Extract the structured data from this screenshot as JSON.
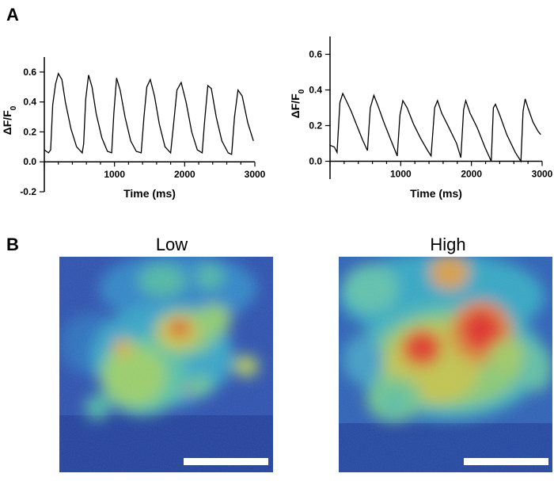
{
  "panels": {
    "a": "A",
    "b": "B"
  },
  "chart_data": [
    {
      "type": "line",
      "title": "",
      "xlabel": "Time (ms)",
      "ylabel": "ΔF/F",
      "ylabel_subscript": "0",
      "xlim": [
        0,
        3000
      ],
      "ylim": [
        -0.2,
        0.7
      ],
      "xticks": [
        1000,
        2000,
        3000
      ],
      "xtick_labels": [
        "1000",
        "2000",
        "3000"
      ],
      "yticks": [
        -0.2,
        0.0,
        0.2,
        0.4,
        0.6
      ],
      "ytick_labels": [
        "-0.2",
        "0.0",
        "0.2",
        "0.4",
        "0.6"
      ],
      "series": [
        {
          "name": "Low",
          "x": [
            0,
            60,
            90,
            120,
            160,
            200,
            250,
            300,
            380,
            460,
            540,
            560,
            590,
            630,
            680,
            740,
            820,
            900,
            960,
            990,
            1030,
            1080,
            1150,
            1230,
            1310,
            1380,
            1420,
            1460,
            1510,
            1570,
            1640,
            1720,
            1800,
            1840,
            1890,
            1950,
            2020,
            2100,
            2180,
            2250,
            2280,
            2330,
            2380,
            2450,
            2530,
            2620,
            2670,
            2710,
            2760,
            2820,
            2900,
            2980
          ],
          "values": [
            0.08,
            0.06,
            0.08,
            0.38,
            0.52,
            0.59,
            0.55,
            0.4,
            0.22,
            0.1,
            0.06,
            0.12,
            0.42,
            0.58,
            0.5,
            0.32,
            0.16,
            0.07,
            0.06,
            0.32,
            0.56,
            0.48,
            0.3,
            0.14,
            0.07,
            0.06,
            0.3,
            0.5,
            0.55,
            0.44,
            0.25,
            0.1,
            0.06,
            0.24,
            0.48,
            0.53,
            0.4,
            0.2,
            0.08,
            0.06,
            0.25,
            0.51,
            0.49,
            0.3,
            0.14,
            0.06,
            0.05,
            0.3,
            0.48,
            0.44,
            0.26,
            0.14
          ]
        }
      ]
    },
    {
      "type": "line",
      "title": "",
      "xlabel": "Time (ms)",
      "ylabel": "ΔF/F",
      "ylabel_subscript": "0",
      "xlim": [
        0,
        3000
      ],
      "ylim": [
        -0.1,
        0.7
      ],
      "xticks": [
        1000,
        2000,
        3000
      ],
      "xtick_labels": [
        "1000",
        "2000",
        "3000"
      ],
      "yticks": [
        0.0,
        0.2,
        0.4,
        0.6
      ],
      "ytick_labels": [
        "0.0",
        "0.2",
        "0.4",
        "0.6"
      ],
      "series": [
        {
          "name": "High",
          "x": [
            0,
            60,
            100,
            140,
            180,
            230,
            300,
            380,
            460,
            530,
            570,
            620,
            680,
            760,
            860,
            950,
            990,
            1030,
            1090,
            1180,
            1280,
            1380,
            1430,
            1480,
            1520,
            1580,
            1680,
            1790,
            1850,
            1890,
            1920,
            1980,
            2080,
            2190,
            2280,
            2310,
            2340,
            2400,
            2500,
            2620,
            2700,
            2730,
            2760,
            2800,
            2870,
            2940,
            2980
          ],
          "values": [
            0.09,
            0.08,
            0.05,
            0.33,
            0.38,
            0.34,
            0.28,
            0.2,
            0.12,
            0.06,
            0.3,
            0.37,
            0.31,
            0.22,
            0.12,
            0.03,
            0.26,
            0.34,
            0.3,
            0.21,
            0.13,
            0.06,
            0.03,
            0.3,
            0.34,
            0.27,
            0.19,
            0.1,
            0.02,
            0.29,
            0.34,
            0.27,
            0.19,
            0.08,
            0.0,
            0.3,
            0.32,
            0.26,
            0.15,
            0.05,
            0.0,
            0.28,
            0.35,
            0.3,
            0.22,
            0.17,
            0.15
          ]
        }
      ]
    }
  ],
  "images": {
    "low": {
      "title": "Low"
    },
    "high": {
      "title": "High"
    }
  }
}
